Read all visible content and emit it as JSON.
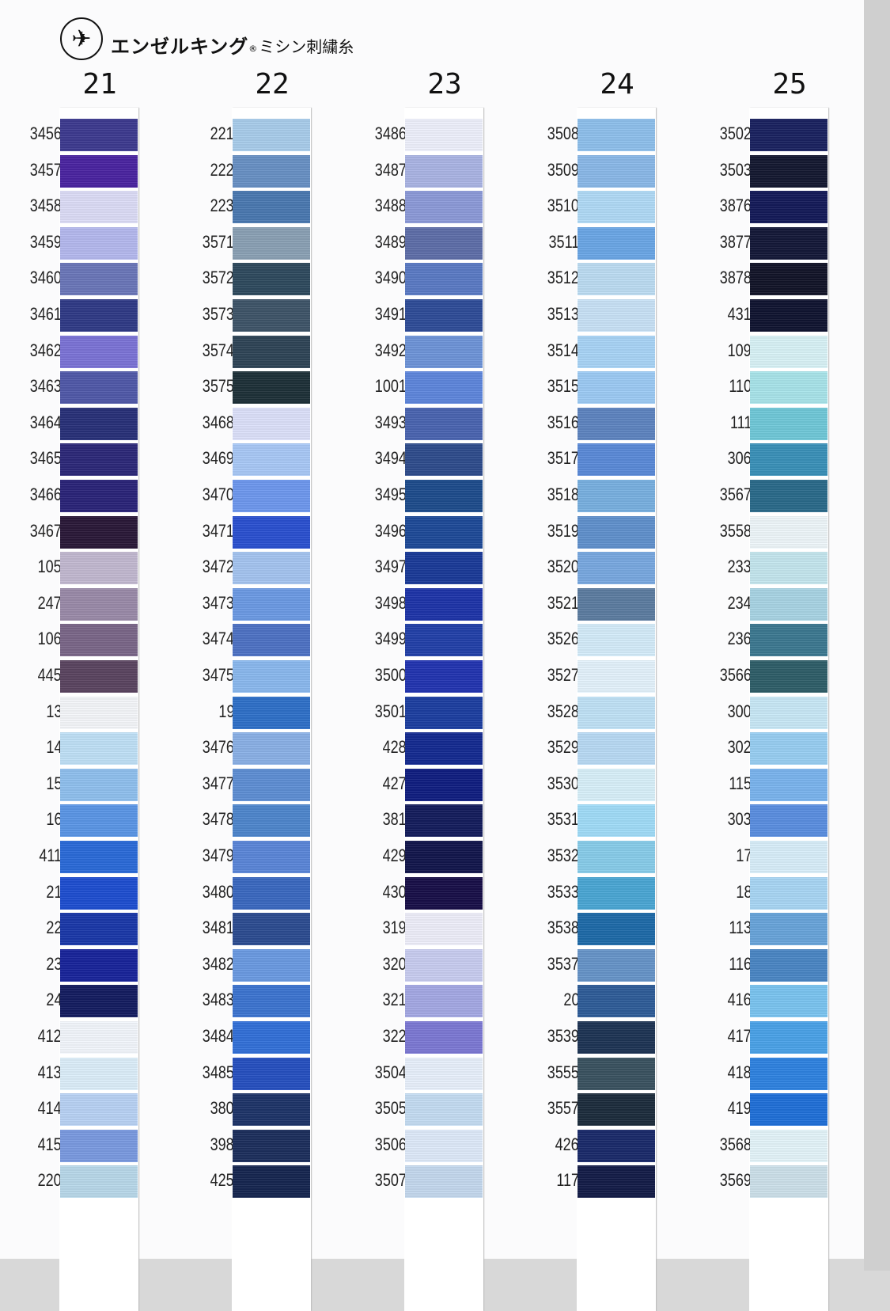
{
  "header": {
    "brand": "エンゼルキング",
    "registered": "®",
    "subtitle": "ミシン刺繍糸"
  },
  "columns": [
    {
      "number": "21",
      "swatches": [
        {
          "code": "3456",
          "color": "#3d3a8f"
        },
        {
          "code": "3457",
          "color": "#4a24a0"
        },
        {
          "code": "3458",
          "color": "#dcdcf6"
        },
        {
          "code": "3459",
          "color": "#b4b8ee"
        },
        {
          "code": "3460",
          "color": "#6a76b8"
        },
        {
          "code": "3461",
          "color": "#2f3a86"
        },
        {
          "code": "3462",
          "color": "#7b73d6"
        },
        {
          "code": "3463",
          "color": "#5058a8"
        },
        {
          "code": "3464",
          "color": "#283078"
        },
        {
          "code": "3465",
          "color": "#2c2878"
        },
        {
          "code": "3466",
          "color": "#2a2478"
        },
        {
          "code": "3467",
          "color": "#2a1838"
        },
        {
          "code": "105",
          "color": "#c2b8d0"
        },
        {
          "code": "247",
          "color": "#9a8aa8"
        },
        {
          "code": "106",
          "color": "#7a6688"
        },
        {
          "code": "445",
          "color": "#5a4460"
        },
        {
          "code": "13",
          "color": "#f4f6fa"
        },
        {
          "code": "14",
          "color": "#bfe0f6"
        },
        {
          "code": "15",
          "color": "#8fc0ee"
        },
        {
          "code": "16",
          "color": "#5a96e6"
        },
        {
          "code": "411",
          "color": "#2a6ad8"
        },
        {
          "code": "21",
          "color": "#1e4ed0"
        },
        {
          "code": "22",
          "color": "#1a38a8"
        },
        {
          "code": "23",
          "color": "#18249a"
        },
        {
          "code": "24",
          "color": "#141c60"
        },
        {
          "code": "412",
          "color": "#f2f6fc"
        },
        {
          "code": "413",
          "color": "#dceefa"
        },
        {
          "code": "414",
          "color": "#b8d2f4"
        },
        {
          "code": "415",
          "color": "#7a9ae0"
        },
        {
          "code": "220",
          "color": "#b8d8ea"
        }
      ]
    },
    {
      "number": "22",
      "swatches": [
        {
          "code": "221",
          "color": "#a8cceb"
        },
        {
          "code": "222",
          "color": "#6890c4"
        },
        {
          "code": "223",
          "color": "#4a78b0"
        },
        {
          "code": "3571",
          "color": "#8aa0b4"
        },
        {
          "code": "3572",
          "color": "#2e4a5e"
        },
        {
          "code": "3573",
          "color": "#3e5468"
        },
        {
          "code": "3574",
          "color": "#2e4456"
        },
        {
          "code": "3575",
          "color": "#1e3038"
        },
        {
          "code": "3468",
          "color": "#dce0fa"
        },
        {
          "code": "3469",
          "color": "#a8c8f6"
        },
        {
          "code": "3470",
          "color": "#6e98ee"
        },
        {
          "code": "3471",
          "color": "#2a50d0"
        },
        {
          "code": "3472",
          "color": "#a4c4f0"
        },
        {
          "code": "3473",
          "color": "#6c9ae4"
        },
        {
          "code": "3474",
          "color": "#4e72c4"
        },
        {
          "code": "3475",
          "color": "#8ab8ee"
        },
        {
          "code": "19",
          "color": "#2e70c8"
        },
        {
          "code": "3476",
          "color": "#8ab0e6"
        },
        {
          "code": "3477",
          "color": "#5e8ed4"
        },
        {
          "code": "3478",
          "color": "#4e86cc"
        },
        {
          "code": "3479",
          "color": "#5a86d8"
        },
        {
          "code": "3480",
          "color": "#3a68c0"
        },
        {
          "code": "3481",
          "color": "#2c4c90"
        },
        {
          "code": "3482",
          "color": "#6a9ae2"
        },
        {
          "code": "3483",
          "color": "#3c74d0"
        },
        {
          "code": "3484",
          "color": "#3270d8"
        },
        {
          "code": "3485",
          "color": "#2650c0"
        },
        {
          "code": "380",
          "color": "#1e3468"
        },
        {
          "code": "398",
          "color": "#1c2e5c"
        },
        {
          "code": "425",
          "color": "#162650"
        }
      ]
    },
    {
      "number": "23",
      "swatches": [
        {
          "code": "3486",
          "color": "#eef0fc"
        },
        {
          "code": "3487",
          "color": "#aab4e4"
        },
        {
          "code": "3488",
          "color": "#8c9ad8"
        },
        {
          "code": "3489",
          "color": "#5e6ea8"
        },
        {
          "code": "3490",
          "color": "#5a7ac4"
        },
        {
          "code": "3491",
          "color": "#2e4c98"
        },
        {
          "code": "3492",
          "color": "#6e94d8"
        },
        {
          "code": "1001",
          "color": "#5e86dc"
        },
        {
          "code": "3493",
          "color": "#4a64b0"
        },
        {
          "code": "3494",
          "color": "#2e4c8c"
        },
        {
          "code": "3495",
          "color": "#1e4c8c"
        },
        {
          "code": "3496",
          "color": "#1e4a98"
        },
        {
          "code": "3497",
          "color": "#1a3a98"
        },
        {
          "code": "3498",
          "color": "#1e34a8"
        },
        {
          "code": "3499",
          "color": "#2240a8"
        },
        {
          "code": "3500",
          "color": "#2234b0"
        },
        {
          "code": "3501",
          "color": "#1c3ea0"
        },
        {
          "code": "428",
          "color": "#142a90"
        },
        {
          "code": "427",
          "color": "#101e80"
        },
        {
          "code": "381",
          "color": "#141c5c"
        },
        {
          "code": "429",
          "color": "#12164c"
        },
        {
          "code": "430",
          "color": "#180f48"
        },
        {
          "code": "319",
          "color": "#eeeefa"
        },
        {
          "code": "320",
          "color": "#c8ccf0"
        },
        {
          "code": "321",
          "color": "#a4a8e4"
        },
        {
          "code": "322",
          "color": "#7c78d4"
        },
        {
          "code": "3504",
          "color": "#e8f0fc"
        },
        {
          "code": "3505",
          "color": "#c4dcf2"
        },
        {
          "code": "3506",
          "color": "#deeafa"
        },
        {
          "code": "3507",
          "color": "#c4d8ee"
        }
      ]
    },
    {
      "number": "24",
      "swatches": [
        {
          "code": "3508",
          "color": "#8ec0ec"
        },
        {
          "code": "3509",
          "color": "#8ab8e8"
        },
        {
          "code": "3510",
          "color": "#b0daf6"
        },
        {
          "code": "3511",
          "color": "#6aa6e6"
        },
        {
          "code": "3512",
          "color": "#bcdcf2"
        },
        {
          "code": "3513",
          "color": "#c8e2f6"
        },
        {
          "code": "3514",
          "color": "#a8d4f6"
        },
        {
          "code": "3515",
          "color": "#9ccaf4"
        },
        {
          "code": "3516",
          "color": "#5e84c0"
        },
        {
          "code": "3517",
          "color": "#5a8ad8"
        },
        {
          "code": "3518",
          "color": "#78b0e0"
        },
        {
          "code": "3519",
          "color": "#6090cc"
        },
        {
          "code": "3520",
          "color": "#78a8e0"
        },
        {
          "code": "3521",
          "color": "#5c7ca0"
        },
        {
          "code": "3526",
          "color": "#d4ecfa"
        },
        {
          "code": "3527",
          "color": "#e4f2fc"
        },
        {
          "code": "3528",
          "color": "#c0e2f6"
        },
        {
          "code": "3529",
          "color": "#b8daf4"
        },
        {
          "code": "3530",
          "color": "#d8f0fa"
        },
        {
          "code": "3531",
          "color": "#a0dcf8"
        },
        {
          "code": "3532",
          "color": "#88ccea"
        },
        {
          "code": "3533",
          "color": "#4aa6d4"
        },
        {
          "code": "3538",
          "color": "#1e6aa8"
        },
        {
          "code": "3537",
          "color": "#6694c8"
        },
        {
          "code": "20",
          "color": "#2e5c98"
        },
        {
          "code": "3539",
          "color": "#1e3454"
        },
        {
          "code": "3555",
          "color": "#3a5260"
        },
        {
          "code": "3557",
          "color": "#1c2c3c"
        },
        {
          "code": "426",
          "color": "#1a2a6a"
        },
        {
          "code": "117",
          "color": "#141c48"
        }
      ]
    },
    {
      "number": "25",
      "swatches": [
        {
          "code": "3502",
          "color": "#1a2260"
        },
        {
          "code": "3503",
          "color": "#141830"
        },
        {
          "code": "3876",
          "color": "#141a58"
        },
        {
          "code": "3877",
          "color": "#141838"
        },
        {
          "code": "3878",
          "color": "#121428"
        },
        {
          "code": "431",
          "color": "#101430"
        },
        {
          "code": "109",
          "color": "#d8f2f6"
        },
        {
          "code": "110",
          "color": "#a8e4ea"
        },
        {
          "code": "111",
          "color": "#70c8d8"
        },
        {
          "code": "306",
          "color": "#3a90b8"
        },
        {
          "code": "3567",
          "color": "#2a6a8a"
        },
        {
          "code": "3558",
          "color": "#eef6fa"
        },
        {
          "code": "233",
          "color": "#c4e6ee"
        },
        {
          "code": "234",
          "color": "#a8d4e4"
        },
        {
          "code": "236",
          "color": "#3c7890"
        },
        {
          "code": "3566",
          "color": "#2e5e68"
        },
        {
          "code": "300",
          "color": "#c8e8f6"
        },
        {
          "code": "302",
          "color": "#98cef2"
        },
        {
          "code": "115",
          "color": "#7ab4ee"
        },
        {
          "code": "303",
          "color": "#5a8ee0"
        },
        {
          "code": "17",
          "color": "#d8eefa"
        },
        {
          "code": "18",
          "color": "#a8d6f4"
        },
        {
          "code": "113",
          "color": "#68a4da"
        },
        {
          "code": "116",
          "color": "#4a86c4"
        },
        {
          "code": "416",
          "color": "#7ac4f0"
        },
        {
          "code": "417",
          "color": "#4aa2e8"
        },
        {
          "code": "418",
          "color": "#2e82e0"
        },
        {
          "code": "419",
          "color": "#2070d8"
        },
        {
          "code": "3568",
          "color": "#e4f4fa"
        },
        {
          "code": "3569",
          "color": "#cce0ea"
        }
      ]
    }
  ]
}
